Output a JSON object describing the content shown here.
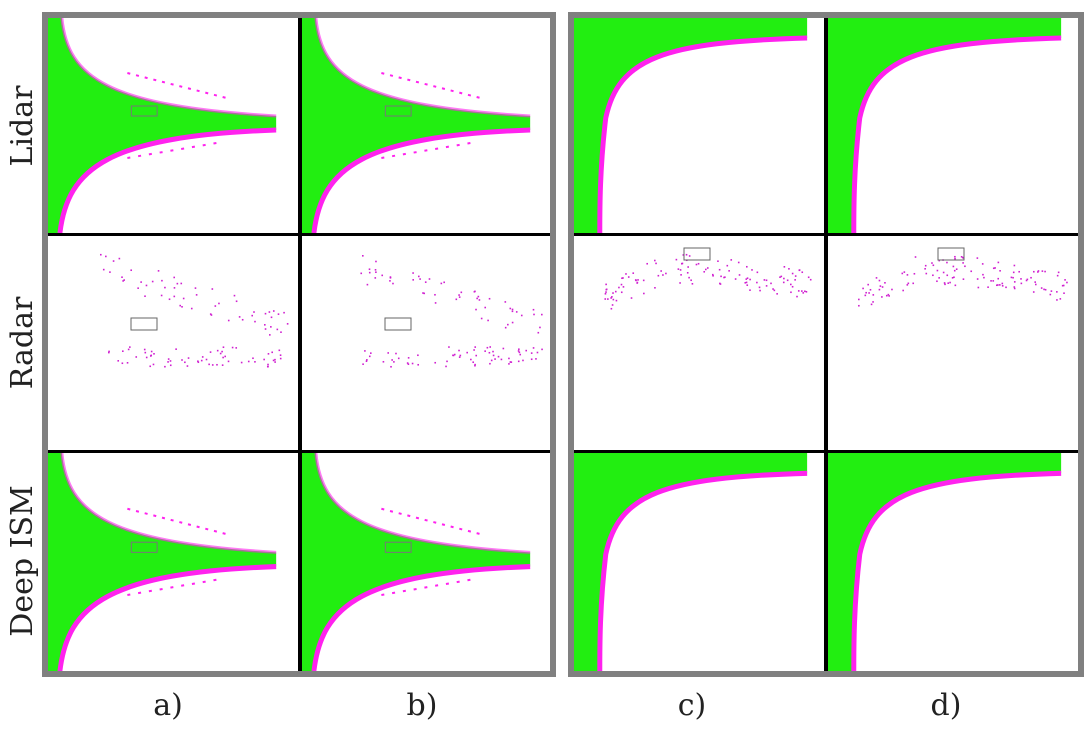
{
  "row_labels": [
    "Lidar",
    "Radar",
    "Deep ISM"
  ],
  "column_labels": [
    "a)",
    "b)",
    "c)",
    "d)"
  ]
}
